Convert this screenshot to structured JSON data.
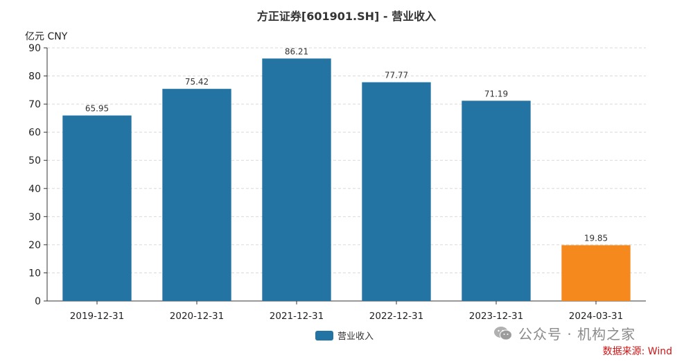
{
  "chart_data": {
    "type": "bar",
    "title": "方正证券[601901.SH] - 营业收入",
    "ylabel": "亿元  CNY",
    "categories": [
      "2019-12-31",
      "2020-12-31",
      "2021-12-31",
      "2022-12-31",
      "2023-12-31",
      "2024-03-31"
    ],
    "series": [
      {
        "name": "营业收入",
        "values": [
          65.95,
          75.42,
          86.21,
          77.77,
          71.19,
          19.85
        ]
      }
    ],
    "value_labels": [
      "65.95",
      "75.42",
      "86.21",
      "77.77",
      "71.19",
      "19.85"
    ],
    "bar_colors": [
      "#2474a3",
      "#2474a3",
      "#2474a3",
      "#2474a3",
      "#2474a3",
      "#f5891d"
    ],
    "ylim": [
      0,
      90
    ],
    "yticks": [
      0,
      10,
      20,
      30,
      40,
      50,
      60,
      70,
      80,
      90
    ],
    "grid": true,
    "legend_position": "bottom"
  },
  "legend": {
    "label": "营业收入",
    "color": "#2474a3"
  },
  "watermark": {
    "text": "公众号 · 机构之家",
    "icon": "wechat-icon"
  },
  "source": {
    "text": "数据来源: Wind"
  }
}
